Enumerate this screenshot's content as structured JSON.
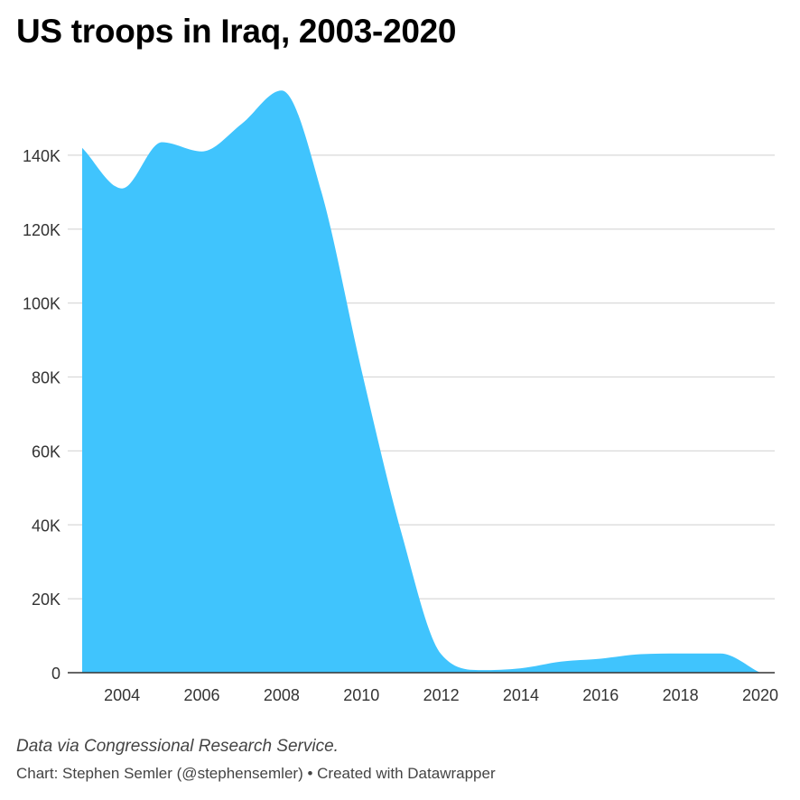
{
  "header": {
    "title": "US troops in Iraq, 2003-2020"
  },
  "footer": {
    "notes": "Data via Congressional Research Service.",
    "byline": "Chart: Stephen Semler (@stephensemler) • Created with Datawrapper"
  },
  "chart_data": {
    "type": "area",
    "title": "US troops in Iraq, 2003-2020",
    "x": [
      2003,
      2004,
      2005,
      2006,
      2007,
      2008,
      2009,
      2010,
      2011,
      2012,
      2013,
      2014,
      2015,
      2016,
      2017,
      2018,
      2019,
      2020
    ],
    "series": [
      {
        "values": [
          142000,
          131000,
          143500,
          141000,
          148500,
          157500,
          130000,
          82000,
          38000,
          5000,
          700,
          1200,
          3000,
          3800,
          5000,
          5200,
          5200,
          0
        ]
      }
    ],
    "xlim": [
      2003,
      2020
    ],
    "ylim": [
      0,
      160000
    ],
    "x_ticks": [
      2004,
      2006,
      2008,
      2010,
      2012,
      2014,
      2016,
      2018,
      2020
    ],
    "x_tick_labels": [
      "2004",
      "2006",
      "2008",
      "2010",
      "2012",
      "2014",
      "2016",
      "2018",
      "2020"
    ],
    "y_ticks": [
      0,
      20000,
      40000,
      60000,
      80000,
      100000,
      120000,
      140000
    ],
    "y_tick_labels": [
      "0",
      "20K",
      "40K",
      "60K",
      "80K",
      "100K",
      "120K",
      "140K"
    ],
    "grid": true,
    "legend": "none",
    "colors": {
      "area": "#40c4fd",
      "grid": "#d9d9d9",
      "baseline": "#333333"
    }
  }
}
